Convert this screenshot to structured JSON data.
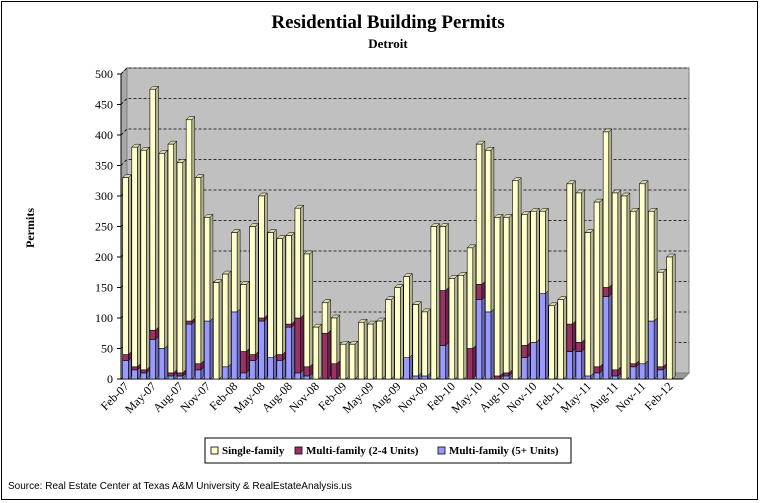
{
  "chart_data": {
    "type": "bar",
    "stacked": true,
    "title": "Residential Building Permits",
    "subtitle": "Detroit",
    "ylabel": "Permits",
    "xlabel": "",
    "ylim": [
      0,
      500
    ],
    "yticks": [
      0,
      50,
      100,
      150,
      200,
      250,
      300,
      350,
      400,
      450,
      500
    ],
    "grid": true,
    "legend_position": "bottom",
    "source": "Source: Real Estate Center at Texas A&M University & RealEstateAnalysis.us",
    "colors": {
      "single_family": "#ffffcc",
      "multi_2_4": "#993366",
      "multi_5_plus": "#9999ff",
      "plot_background": "#c0c0c0"
    },
    "categories": [
      "Feb-07",
      "Mar-07",
      "Apr-07",
      "May-07",
      "Jun-07",
      "Jul-07",
      "Aug-07",
      "Sep-07",
      "Oct-07",
      "Nov-07",
      "Dec-07",
      "Jan-08",
      "Feb-08",
      "Mar-08",
      "Apr-08",
      "May-08",
      "Jun-08",
      "Jul-08",
      "Aug-08",
      "Sep-08",
      "Oct-08",
      "Nov-08",
      "Dec-08",
      "Jan-09",
      "Feb-09",
      "Mar-09",
      "Apr-09",
      "May-09",
      "Jun-09",
      "Jul-09",
      "Aug-09",
      "Sep-09",
      "Oct-09",
      "Nov-09",
      "Dec-09",
      "Jan-10",
      "Feb-10",
      "Mar-10",
      "Apr-10",
      "May-10",
      "Jun-10",
      "Jul-10",
      "Aug-10",
      "Sep-10",
      "Oct-10",
      "Nov-10",
      "Dec-10",
      "Jan-11",
      "Feb-11",
      "Mar-11",
      "Apr-11",
      "May-11",
      "Jun-11",
      "Jul-11",
      "Aug-11",
      "Sep-11",
      "Oct-11",
      "Nov-11",
      "Dec-11",
      "Jan-12",
      "Feb-12",
      "Mar-12"
    ],
    "x_tick_labels": [
      "Feb-07",
      "May-07",
      "Aug-07",
      "Nov-07",
      "Feb-08",
      "May-08",
      "Aug-08",
      "Nov-08",
      "Feb-09",
      "May-09",
      "Aug-09",
      "Nov-09",
      "Feb-10",
      "May-10",
      "Aug-10",
      "Nov-10",
      "Feb-11",
      "May-11",
      "Aug-11",
      "Nov-11",
      "Feb-12"
    ],
    "series": [
      {
        "name": "Multi-family (5+ Units)",
        "key": "multi_5_plus",
        "values": [
          30,
          15,
          10,
          65,
          50,
          5,
          5,
          90,
          15,
          95,
          0,
          20,
          110,
          10,
          30,
          95,
          35,
          30,
          85,
          10,
          5,
          0,
          0,
          0,
          0,
          0,
          0,
          0,
          0,
          0,
          0,
          35,
          5,
          5,
          0,
          55,
          0,
          0,
          0,
          130,
          110,
          0,
          5,
          0,
          35,
          60,
          140,
          0,
          0,
          45,
          45,
          5,
          10,
          135,
          5,
          0,
          20,
          25,
          95,
          15,
          0,
          0
        ]
      },
      {
        "name": "Multi-family (2-4 Units)",
        "key": "multi_2_4",
        "values": [
          10,
          5,
          5,
          15,
          0,
          5,
          5,
          5,
          10,
          0,
          0,
          0,
          0,
          35,
          10,
          5,
          0,
          10,
          5,
          90,
          15,
          0,
          75,
          25,
          0,
          0,
          0,
          0,
          0,
          0,
          0,
          0,
          0,
          0,
          0,
          90,
          0,
          0,
          50,
          25,
          0,
          5,
          5,
          0,
          20,
          0,
          0,
          0,
          0,
          45,
          15,
          0,
          10,
          15,
          10,
          0,
          5,
          0,
          0,
          5,
          0,
          0
        ]
      },
      {
        "name": "Single-family",
        "key": "single_family",
        "values": [
          290,
          360,
          360,
          395,
          320,
          375,
          345,
          330,
          305,
          170,
          158,
          152,
          130,
          110,
          210,
          200,
          205,
          190,
          145,
          180,
          185,
          85,
          50,
          75,
          57,
          57,
          93,
          90,
          95,
          130,
          150,
          133,
          117,
          105,
          250,
          105,
          165,
          170,
          165,
          230,
          265,
          260,
          255,
          325,
          215,
          215,
          135,
          120,
          130,
          230,
          245,
          235,
          270,
          255,
          290,
          300,
          250,
          295,
          180,
          155,
          200,
          0
        ]
      }
    ]
  },
  "legend": {
    "items": [
      {
        "label": "Single-family",
        "key": "single_family"
      },
      {
        "label": "Multi-family (2-4 Units)",
        "key": "multi_2_4"
      },
      {
        "label": "Multi-family (5+ Units)",
        "key": "multi_5_plus"
      }
    ]
  }
}
